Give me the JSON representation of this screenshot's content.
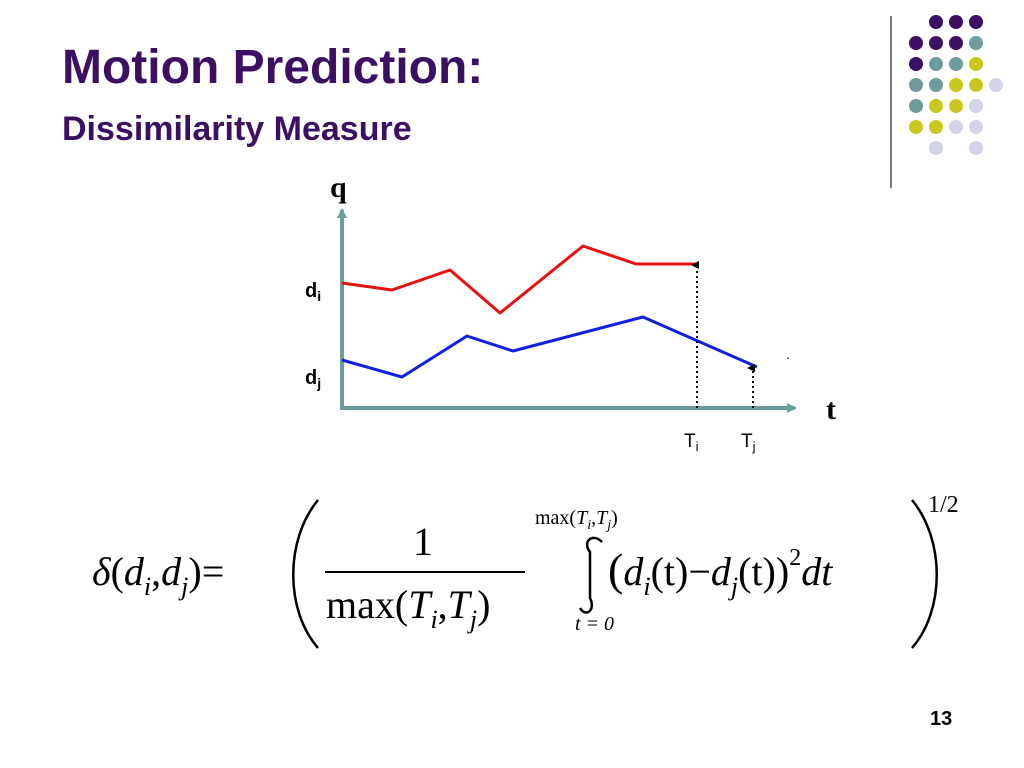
{
  "slide": {
    "title": "Motion Prediction:",
    "subtitle": "Dissimilarity Measure",
    "page_number": "13"
  },
  "decoration": {
    "dot_colors": [
      "#3b1063",
      "#6e9c9c",
      "#c8c820",
      "#d4d4e8"
    ]
  },
  "diagram": {
    "y_axis_label": "q",
    "x_axis_label": "t",
    "axis_color": "#6e9c9c",
    "curve_i": {
      "label_main": "d",
      "label_sub": "i",
      "color": "#e81010"
    },
    "curve_j": {
      "label_main": "d",
      "label_sub": "j",
      "color": "#1020e0"
    },
    "tick_i": {
      "main": "T",
      "sub": "i"
    },
    "tick_j": {
      "main": "T",
      "sub": "j"
    },
    "stray_mark": "."
  },
  "formula": {
    "delta": "δ",
    "lhs_open": "(",
    "lhs_d1": "d",
    "lhs_i": "i",
    "lhs_comma": ",",
    "lhs_d2": "d",
    "lhs_j": "j",
    "lhs_close": ")",
    "equals": "=",
    "numerator": "1",
    "den_max": "max(",
    "den_T1": "T",
    "den_i": "i",
    "den_comma": ",",
    "den_T2": "T",
    "den_j": "j",
    "den_close": ")",
    "upper_max": "max(",
    "upper_T1": "T",
    "upper_i": "i",
    "upper_comma": ",",
    "upper_T2": "T",
    "upper_j": "j",
    "upper_close": ")",
    "lower_limit": "t = 0",
    "int_d1": "d",
    "int_i": "i",
    "int_t1": "(t)",
    "minus": "−",
    "int_d2": "d",
    "int_j": "j",
    "int_t2": "(t))",
    "square": "2",
    "dt": "dt",
    "exponent": "1/2"
  }
}
